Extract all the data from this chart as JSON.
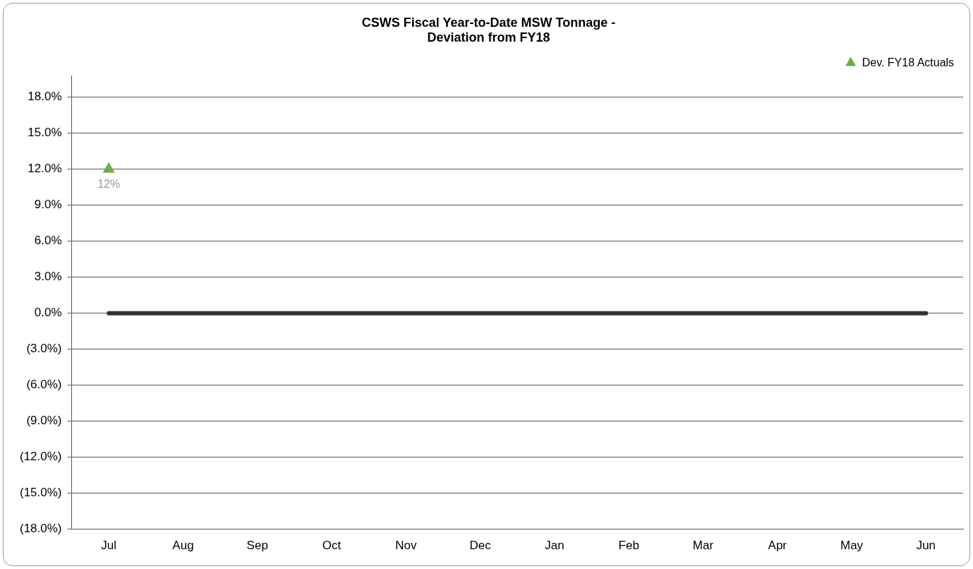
{
  "chart_data": {
    "type": "line",
    "title": [
      "CSWS Fiscal Year-to-Date MSW Tonnage -",
      "Deviation from FY18"
    ],
    "categories": [
      "Jul",
      "Aug",
      "Sep",
      "Oct",
      "Nov",
      "Dec",
      "Jan",
      "Feb",
      "Mar",
      "Apr",
      "May",
      "Jun"
    ],
    "series": [
      {
        "name": "Dev. FY18 Actuals",
        "color": "#70ad47",
        "marker": "triangle",
        "values": [
          12,
          null,
          null,
          null,
          null,
          null,
          null,
          null,
          null,
          null,
          null,
          null
        ],
        "value_labels": [
          "12%",
          null,
          null,
          null,
          null,
          null,
          null,
          null,
          null,
          null,
          null,
          null
        ]
      },
      {
        "color": "#333333",
        "marker": "none",
        "values": [
          0,
          0,
          0,
          0,
          0,
          0,
          0,
          0,
          0,
          0,
          0,
          0
        ]
      }
    ],
    "ylim": [
      -18,
      19.8
    ],
    "yticks": [
      {
        "value": -18,
        "label": "(18.0%)"
      },
      {
        "value": -15,
        "label": "(15.0%)"
      },
      {
        "value": -12,
        "label": "(12.0%)"
      },
      {
        "value": -9,
        "label": "(9.0%)"
      },
      {
        "value": -6,
        "label": "(6.0%)"
      },
      {
        "value": -3,
        "label": "(3.0%)"
      },
      {
        "value": 0,
        "label": "0.0%"
      },
      {
        "value": 3,
        "label": "3.0%"
      },
      {
        "value": 6,
        "label": "6.0%"
      },
      {
        "value": 9,
        "label": "9.0%"
      },
      {
        "value": 12,
        "label": "12.0%"
      },
      {
        "value": 15,
        "label": "15.0%"
      },
      {
        "value": 18,
        "label": "18.0%"
      }
    ],
    "grid": "y",
    "legend": "top right",
    "line_style": "solid"
  }
}
